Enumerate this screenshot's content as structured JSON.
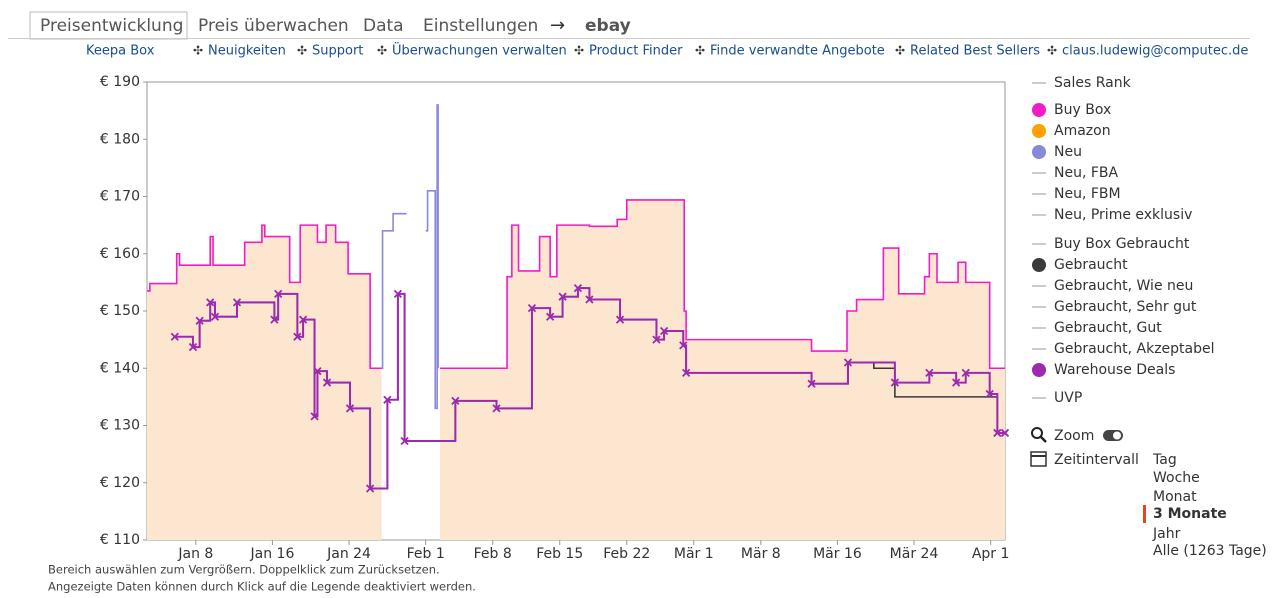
{
  "tabs": [
    "Preisentwicklung",
    "Preis überwachen",
    "Data",
    "Einstellungen",
    "ebay"
  ],
  "active_tab": 0,
  "links": [
    "Keepa Box",
    "Neuigkeiten",
    "Support",
    "Überwachungen verwalten",
    "Product Finder",
    "Finde verwandte Angebote",
    "Related Best Sellers",
    "claus.ludewig@computec.de"
  ],
  "chart_data": {
    "type": "line",
    "step": true,
    "xlim": [
      1.9,
      91.5
    ],
    "xticks": [
      {
        "value": 7,
        "label": "Jan 8"
      },
      {
        "value": 15,
        "label": "Jan 16"
      },
      {
        "value": 23,
        "label": "Jan 24"
      },
      {
        "value": 31,
        "label": "Feb 1"
      },
      {
        "value": 38,
        "label": "Feb 8"
      },
      {
        "value": 45,
        "label": "Feb 15"
      },
      {
        "value": 52,
        "label": "Feb 22"
      },
      {
        "value": 59,
        "label": "Mär 1"
      },
      {
        "value": 66,
        "label": "Mär 8"
      },
      {
        "value": 74,
        "label": "Mär 16"
      },
      {
        "value": 82,
        "label": "Mär 24"
      },
      {
        "value": 90,
        "label": "Apr 1"
      }
    ],
    "ylim": [
      110,
      190
    ],
    "yticks": [
      {
        "value": 110,
        "label": "€ 110"
      },
      {
        "value": 120,
        "label": "€ 120"
      },
      {
        "value": 130,
        "label": "€ 130"
      },
      {
        "value": 140,
        "label": "€ 140"
      },
      {
        "value": 150,
        "label": "€ 150"
      },
      {
        "value": 160,
        "label": "€ 160"
      },
      {
        "value": 170,
        "label": "€ 170"
      },
      {
        "value": 180,
        "label": "€ 180"
      },
      {
        "value": 190,
        "label": "€ 190"
      }
    ],
    "grid": false,
    "series": [
      {
        "name": "Sales Rank",
        "marker": "line",
        "color": "#bbbbbb",
        "x": [],
        "values": []
      },
      {
        "name": "Buy Box",
        "marker": "dot",
        "color": "#f01cc8",
        "area": "#fde6cf",
        "x": [
          1.9,
          2.2,
          5.0,
          5.3,
          6.4,
          8.5,
          8.8,
          10.5,
          12.1,
          13.9,
          14.2,
          16.8,
          17.9,
          19.7,
          20.6,
          21.6,
          22.9,
          25.2,
          26.4,
          32.5,
          39.5,
          40.0,
          40.7,
          42.9,
          44.0,
          44.7,
          48.1,
          51.0,
          52.0,
          58.0,
          58.2,
          71.3,
          75.0,
          76.0,
          78.8,
          80.4,
          83.1,
          83.6,
          84.4,
          86.6,
          87.4,
          89.9,
          91.5
        ],
        "values": [
          153.5,
          154.8,
          160,
          158,
          158,
          163,
          158,
          158,
          162,
          165,
          163,
          155,
          165,
          162,
          165,
          162,
          156.5,
          140,
          null,
          140,
          156,
          165,
          157,
          163,
          156,
          165,
          164.8,
          166,
          169.4,
          150,
          145,
          143,
          150,
          152,
          161,
          153,
          156,
          160,
          155,
          158.5,
          155,
          140,
          140
        ]
      },
      {
        "name": "Amazon",
        "marker": "dot",
        "color": "#ff9f00",
        "x": [],
        "values": []
      },
      {
        "name": "Neu",
        "marker": "dot",
        "color": "#8888dd",
        "x": [
          25.9,
          26.5,
          27.6,
          28.7,
          29.0,
          31.0,
          31.2,
          31.9,
          32.0,
          32.2,
          32.3
        ],
        "values": [
          140,
          164,
          167,
          167,
          null,
          164,
          171,
          171,
          133,
          186,
          140
        ]
      },
      {
        "name": "Neu, FBA",
        "marker": "line",
        "color": "#bbbbbb",
        "x": [],
        "values": []
      },
      {
        "name": "Neu, FBM",
        "marker": "line",
        "color": "#bbbbbb",
        "x": [],
        "values": []
      },
      {
        "name": "Neu, Prime exklusiv",
        "marker": "line",
        "color": "#bbbbbb",
        "x": [],
        "values": []
      },
      {
        "name": "Buy Box Gebraucht",
        "marker": "line",
        "color": "#bbbbbb",
        "x": [],
        "values": []
      },
      {
        "name": "Gebraucht",
        "marker": "dot",
        "color": "#3a3a3a",
        "x": [
          6.7,
          7.4,
          8.5,
          9.0,
          11.3,
          15.2,
          15.6,
          17.6,
          18.2,
          19.4,
          19.7,
          20.7,
          23.1,
          25.2,
          27.0,
          28.1,
          28.8,
          34.1,
          38.4,
          42.1,
          44.0,
          45.3,
          46.9,
          48.1,
          51.3,
          55.1,
          55.9,
          57.9,
          58.2,
          71.3,
          75.1,
          77.8,
          80.0,
          89.9,
          90.7,
          91.5
        ],
        "values": [
          143.7,
          148.3,
          151.5,
          149,
          151.5,
          148.5,
          153,
          145.5,
          148.5,
          131.6,
          139.5,
          137.5,
          133,
          119,
          134.5,
          153,
          127.3,
          134.3,
          133,
          150.5,
          149,
          152.5,
          154,
          152,
          148.5,
          145,
          146.5,
          144,
          139.2,
          137.3,
          141,
          140,
          135,
          135,
          128.7,
          128.7
        ]
      },
      {
        "name": "Gebraucht, Wie neu",
        "marker": "line",
        "color": "#bbbbbb",
        "x": [],
        "values": []
      },
      {
        "name": "Gebraucht, Sehr gut",
        "marker": "line",
        "color": "#bbbbbb",
        "x": [],
        "values": []
      },
      {
        "name": "Gebraucht, Gut",
        "marker": "line",
        "color": "#bbbbbb",
        "x": [],
        "values": []
      },
      {
        "name": "Gebraucht, Akzeptabel",
        "marker": "line",
        "color": "#bbbbbb",
        "x": [],
        "values": []
      },
      {
        "name": "Warehouse Deals",
        "marker": "dot",
        "color": "#9c2ab0",
        "points": true,
        "x": [
          4.8,
          6.7,
          7.4,
          8.5,
          9.0,
          11.3,
          15.2,
          15.6,
          17.6,
          18.2,
          19.4,
          19.7,
          20.7,
          23.1,
          25.2,
          27.0,
          28.1,
          28.8,
          34.1,
          38.4,
          42.1,
          44.0,
          45.3,
          46.9,
          48.1,
          51.3,
          55.1,
          55.9,
          57.9,
          58.2,
          71.3,
          75.1,
          80.0,
          83.6,
          86.4,
          87.4,
          89.9,
          90.7,
          91.5
        ],
        "values": [
          145.5,
          143.7,
          148.3,
          151.5,
          149,
          151.5,
          148.5,
          153,
          145.5,
          148.5,
          131.6,
          139.5,
          137.5,
          133,
          119,
          134.5,
          153,
          127.3,
          134.3,
          133,
          150.5,
          149,
          152.5,
          154,
          152,
          148.5,
          145,
          146.5,
          144,
          139.2,
          137.3,
          141,
          137.5,
          139.2,
          137.5,
          139.2,
          135.5,
          128.7,
          128.7
        ]
      },
      {
        "name": "UVP",
        "marker": "line",
        "color": "#bbbbbb",
        "x": [],
        "values": []
      }
    ]
  },
  "controls": {
    "zoom": "Zoom",
    "interval_label": "Zeitintervall",
    "intervals": [
      "Tag",
      "Woche",
      "Monat",
      "3 Monate",
      "Jahr",
      "Alle (1263 Tage)"
    ],
    "selected_interval": 3
  },
  "notes": [
    "Bereich auswählen zum Vergrößern. Doppelklick zum Zurücksetzen.",
    "Angezeigte Daten können durch Klick auf die Legende deaktiviert werden."
  ]
}
